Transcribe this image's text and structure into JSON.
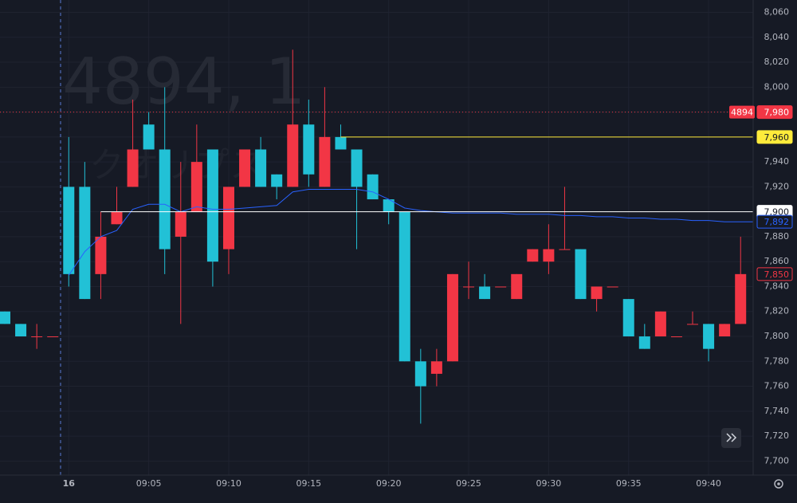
{
  "chart_data": {
    "type": "candlestick",
    "watermark": "4894, 1",
    "watermark_name": "クオリプス",
    "categories": [
      null,
      null,
      null,
      null,
      "16",
      null,
      null,
      null,
      null,
      "09:05",
      null,
      null,
      null,
      null,
      "09:10",
      null,
      null,
      null,
      null,
      "09:15",
      null,
      null,
      null,
      null,
      "09:20",
      null,
      null,
      null,
      null,
      "09:25",
      null,
      null,
      null,
      null,
      "09:30",
      null,
      null,
      null,
      null,
      "09:35",
      null,
      null,
      null,
      null,
      "09:40",
      null,
      null
    ],
    "series": [
      {
        "name": "4894",
        "up_color": "#f23645",
        "down_color": "#22c1d6",
        "open": [
          7820,
          7810,
          7800,
          7800,
          7920,
          7920,
          7850,
          7890,
          7920,
          7970,
          7950,
          7880,
          7900,
          7950,
          7870,
          7920,
          7950,
          7930,
          7920,
          7970,
          7920,
          7960,
          7950,
          7930,
          7910,
          7900,
          7780,
          7770,
          7780,
          7840,
          7840,
          7840,
          7830,
          7860,
          7860,
          7870,
          7870,
          7830,
          7840,
          7830,
          7800,
          7800,
          7800,
          7810,
          7810,
          7800,
          7810
        ],
        "high": [
          7820,
          7810,
          7810,
          7800,
          7960,
          7940,
          7900,
          7920,
          7990,
          7980,
          8000,
          7940,
          7970,
          7950,
          7920,
          7950,
          7960,
          7930,
          8030,
          7990,
          8000,
          7970,
          7950,
          7930,
          7910,
          7900,
          7790,
          7790,
          7850,
          7860,
          7850,
          7840,
          7850,
          7870,
          7890,
          7920,
          7870,
          7840,
          7840,
          7830,
          7810,
          7820,
          7800,
          7820,
          7810,
          7810,
          7880
        ],
        "low": [
          7810,
          7800,
          7790,
          7800,
          7840,
          7830,
          7830,
          7890,
          7920,
          7950,
          7850,
          7810,
          7900,
          7840,
          7850,
          7920,
          7920,
          7910,
          7920,
          7920,
          7920,
          7950,
          7870,
          7910,
          7890,
          7780,
          7730,
          7760,
          7780,
          7830,
          7830,
          7840,
          7830,
          7860,
          7850,
          7870,
          7830,
          7820,
          7840,
          7800,
          7790,
          7800,
          7800,
          7810,
          7780,
          7800,
          7810
        ],
        "close": [
          7810,
          7800,
          7800,
          7800,
          7850,
          7830,
          7880,
          7900,
          7950,
          7950,
          7870,
          7900,
          7940,
          7860,
          7920,
          7950,
          7920,
          7920,
          7970,
          7930,
          7960,
          7950,
          7920,
          7910,
          7900,
          7780,
          7760,
          7780,
          7850,
          7840,
          7830,
          7840,
          7850,
          7870,
          7870,
          7870,
          7830,
          7840,
          7840,
          7800,
          7790,
          7820,
          7800,
          7810,
          7790,
          7810,
          7850
        ]
      },
      {
        "name": "VWAP",
        "color": "#2962ff",
        "values": [
          null,
          null,
          null,
          null,
          7849,
          7868,
          7880,
          7885,
          7902,
          7906,
          7906,
          7900,
          7904,
          7902,
          7902,
          7903,
          7904,
          7905,
          7916,
          7918,
          7918,
          7918,
          7918,
          7916,
          7910,
          7903,
          7901,
          7900,
          7899,
          7899,
          7899,
          7899,
          7898,
          7898,
          7898,
          7897,
          7897,
          7896,
          7896,
          7895,
          7895,
          7894,
          7894,
          7893,
          7893,
          7892,
          7892
        ]
      }
    ],
    "ylim": [
      7690,
      8068
    ],
    "yticks": [
      {
        "value": 7700,
        "label": "7,700"
      },
      {
        "value": 7720,
        "label": "7,720"
      },
      {
        "value": 7740,
        "label": "7,740"
      },
      {
        "value": 7760,
        "label": "7,760"
      },
      {
        "value": 7780,
        "label": "7,780"
      },
      {
        "value": 7800,
        "label": "7,800"
      },
      {
        "value": 7820,
        "label": "7,820"
      },
      {
        "value": 7840,
        "label": "7,840"
      },
      {
        "value": 7860,
        "label": "7,860"
      },
      {
        "value": 7880,
        "label": "7,880"
      },
      {
        "value": 7900,
        "label": "7,900"
      },
      {
        "value": 7920,
        "label": "7,920"
      },
      {
        "value": 7940,
        "label": "7,940"
      },
      {
        "value": 7960,
        "label": "7,960"
      },
      {
        "value": 7980,
        "label": "7,980"
      },
      {
        "value": 8000,
        "label": "8,000"
      },
      {
        "value": 8020,
        "label": "8,020"
      },
      {
        "value": 8040,
        "label": "8,040"
      },
      {
        "value": 8060,
        "label": "8,060"
      }
    ],
    "grid": true,
    "price_lines": [
      {
        "value": 7980,
        "label": "7,980",
        "tag": "4894",
        "color": "#f23645",
        "style": "dotted"
      },
      {
        "value": 7960,
        "label": "7,960",
        "color": "#ffeb3b",
        "style": "solid"
      },
      {
        "value": 7900,
        "label": "7,900",
        "color": "#ffffff",
        "style": "solid"
      },
      {
        "value": 7892,
        "label": "7,892",
        "color": "#2962ff",
        "style": "badge"
      },
      {
        "value": 7850,
        "label": "7,850",
        "color": "#f23645",
        "style": "badge"
      }
    ]
  }
}
